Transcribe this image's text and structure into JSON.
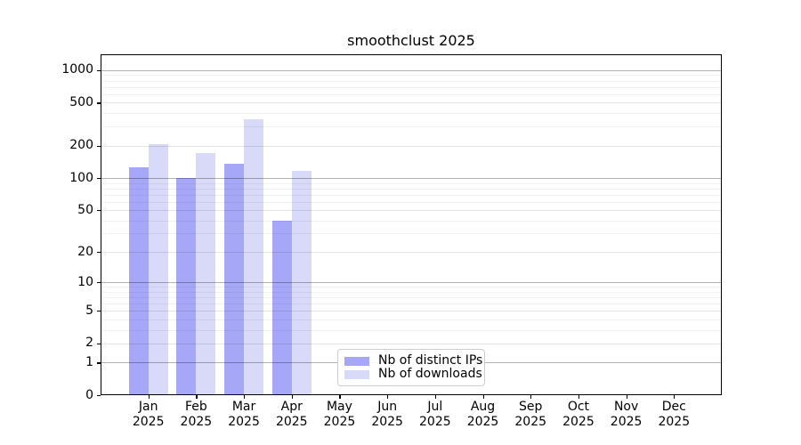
{
  "title": "smoothclust 2025",
  "chart_data": {
    "type": "bar",
    "title": "smoothclust 2025",
    "categories": [
      "Jan",
      "Feb",
      "Mar",
      "Apr",
      "May",
      "Jun",
      "Jul",
      "Aug",
      "Sep",
      "Oct",
      "Nov",
      "Dec"
    ],
    "x_tick_year": "2025",
    "series": [
      {
        "name": "Nb of distinct IPs",
        "color": "#a7a7f7",
        "values": [
          125,
          100,
          135,
          40,
          0,
          0,
          0,
          0,
          0,
          0,
          0,
          0
        ]
      },
      {
        "name": "Nb of downloads",
        "color": "#d9d9f8",
        "values": [
          205,
          170,
          350,
          116,
          0,
          0,
          0,
          0,
          0,
          0,
          0,
          0
        ]
      }
    ],
    "yscale": "log10(value+1)",
    "ylim": [
      0,
      1400
    ],
    "y_ticks": [
      1000,
      500,
      200,
      100,
      50,
      20,
      10,
      5,
      2,
      1,
      0
    ],
    "y_decade_ticks": [
      1000,
      100,
      10,
      1
    ],
    "y_minor_gridlines": [
      900,
      800,
      700,
      600,
      400,
      300,
      90,
      80,
      70,
      60,
      40,
      30,
      9,
      8,
      7,
      6,
      4,
      3
    ],
    "grid": true,
    "legend_position": "bottom-center"
  },
  "legend": {
    "items": [
      {
        "label": "Nb of distinct IPs",
        "color": "#a7a7f7"
      },
      {
        "label": "Nb of downloads",
        "color": "#d9d9f8"
      }
    ]
  }
}
